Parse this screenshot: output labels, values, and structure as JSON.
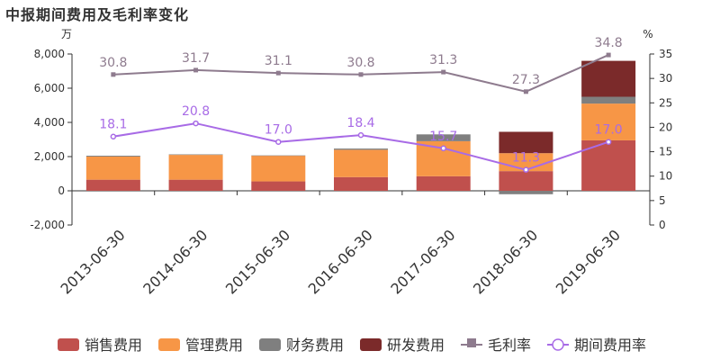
{
  "chart_data": {
    "type": "bar",
    "title": "中报期间费用及毛利率变化",
    "left_unit": "万",
    "right_unit": "%",
    "categories": [
      "2013-06-30",
      "2014-06-30",
      "2015-06-30",
      "2016-06-30",
      "2017-06-30",
      "2018-06-30",
      "2019-06-30"
    ],
    "series": [
      {
        "name": "销售费用",
        "kind": "bar",
        "color": "#c0504d",
        "values": [
          650,
          650,
          550,
          800,
          850,
          1150,
          2950
        ]
      },
      {
        "name": "管理费用",
        "kind": "bar",
        "color": "#f79646",
        "values": [
          1350,
          1450,
          1500,
          1600,
          2050,
          1050,
          2150
        ]
      },
      {
        "name": "财务费用",
        "kind": "bar",
        "color": "#7f7f7f",
        "values": [
          50,
          30,
          20,
          70,
          400,
          -200,
          400
        ]
      },
      {
        "name": "研发费用",
        "kind": "bar",
        "color": "#7b2a2a",
        "values": [
          0,
          0,
          0,
          0,
          0,
          1250,
          2100
        ]
      },
      {
        "name": "毛利率",
        "kind": "line",
        "axis": "right",
        "color": "#8e7b8e",
        "values": [
          30.8,
          31.7,
          31.1,
          30.8,
          31.3,
          27.3,
          34.8
        ]
      },
      {
        "name": "期间费用率",
        "kind": "line",
        "axis": "right",
        "color": "#a86be6",
        "values": [
          18.1,
          20.8,
          17.0,
          18.4,
          15.7,
          11.3,
          17.0
        ]
      }
    ],
    "ylim": [
      -2000,
      8000
    ],
    "yticks": [
      "-2,000",
      "0",
      "2,000",
      "4,000",
      "6,000",
      "8,000"
    ],
    "y2lim": [
      0,
      35
    ],
    "y2ticks": [
      "0",
      "5",
      "10",
      "15",
      "20",
      "25",
      "30",
      "35"
    ],
    "legend": "bottom",
    "grid": false
  }
}
